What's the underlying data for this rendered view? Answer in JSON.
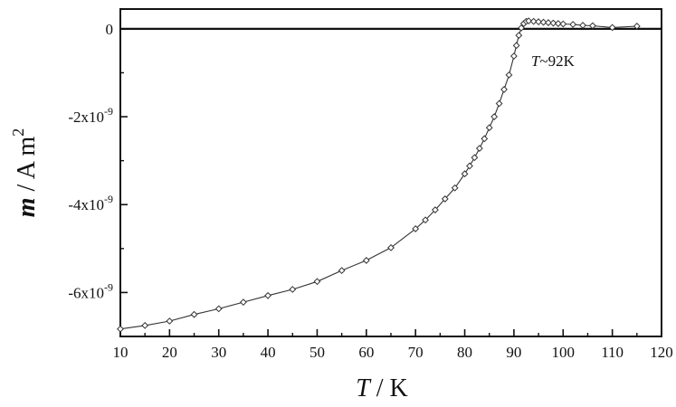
{
  "chart_data": {
    "type": "line",
    "title": "",
    "xlabel": {
      "italic": "T",
      "rest": " / K"
    },
    "ylabel": {
      "italic": "m",
      "rest": " / A m",
      "sup": "2"
    },
    "xlim": [
      10,
      120
    ],
    "ylim": [
      -7.0,
      0.45
    ],
    "y_unit_exponent": -9,
    "x_ticks": [
      10,
      20,
      30,
      40,
      50,
      60,
      70,
      80,
      90,
      100,
      110,
      120
    ],
    "x_tick_labels": [
      "10",
      "20",
      "30",
      "40",
      "50",
      "60",
      "70",
      "80",
      "90",
      "100",
      "110",
      "120"
    ],
    "y_ticks": [
      0,
      -2,
      -4,
      -6
    ],
    "y_tick_labels": [
      {
        "base": "0",
        "exp": ""
      },
      {
        "base": "-2x10",
        "exp": "-9"
      },
      {
        "base": "-4x10",
        "exp": "-9"
      },
      {
        "base": "-6x10",
        "exp": "-9"
      }
    ],
    "annotation": {
      "italic": "T",
      "rest": "~92K",
      "x": 93.5,
      "y": -0.85
    },
    "zero_line": true,
    "grid": false,
    "series": [
      {
        "marker": "diamond-open",
        "x": [
          10,
          15,
          20,
          25,
          30,
          35,
          40,
          45,
          50,
          55,
          60,
          65,
          70,
          72,
          74,
          76,
          78,
          80,
          81,
          82,
          83,
          84,
          85,
          86,
          87,
          88,
          89,
          90,
          90.5,
          91,
          91.5,
          92,
          92.5,
          93,
          94,
          95,
          96,
          97,
          98,
          99,
          100,
          102,
          104,
          106,
          110,
          115
        ],
        "y": [
          -6.83,
          -6.75,
          -6.65,
          -6.5,
          -6.37,
          -6.22,
          -6.07,
          -5.93,
          -5.75,
          -5.5,
          -5.27,
          -4.98,
          -4.55,
          -4.35,
          -4.12,
          -3.87,
          -3.62,
          -3.3,
          -3.12,
          -2.93,
          -2.72,
          -2.5,
          -2.25,
          -2.0,
          -1.7,
          -1.38,
          -1.05,
          -0.62,
          -0.38,
          -0.15,
          0.02,
          0.12,
          0.17,
          0.18,
          0.17,
          0.16,
          0.15,
          0.14,
          0.13,
          0.12,
          0.11,
          0.1,
          0.08,
          0.07,
          0.03,
          0.06
        ]
      }
    ]
  }
}
